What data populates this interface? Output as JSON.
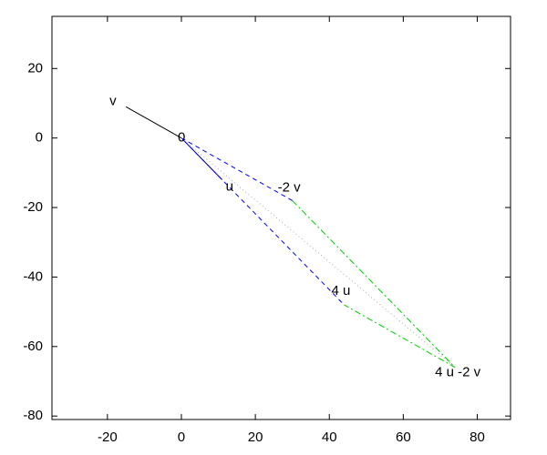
{
  "chart_data": {
    "type": "vector",
    "xlim": [
      -35,
      89
    ],
    "ylim": [
      -81,
      35
    ],
    "xticks": [
      -20,
      0,
      20,
      40,
      60,
      80
    ],
    "yticks": [
      -80,
      -60,
      -40,
      -20,
      0,
      20
    ],
    "grid": false,
    "series": [
      {
        "color": "#000000",
        "dash": "solid",
        "x": [
          0,
          -15
        ],
        "y": [
          0,
          9
        ]
      },
      {
        "color": "#000080",
        "dash": "solid",
        "x": [
          0,
          11
        ],
        "y": [
          0,
          -12
        ]
      },
      {
        "color": "#0000ff",
        "dash": "dashed",
        "x": [
          30,
          0,
          44
        ],
        "y": [
          -18,
          0,
          -48
        ]
      },
      {
        "color": "#00cc00",
        "dash": "dashdot",
        "x": [
          30,
          74,
          44
        ],
        "y": [
          -18,
          -66,
          -48
        ]
      },
      {
        "color": "#aaaaaa",
        "dash": "dotted",
        "x": [
          0,
          74
        ],
        "y": [
          0,
          -66
        ]
      }
    ],
    "points": [
      {
        "label": "v",
        "x": -15,
        "y": 9
      },
      {
        "label": "0",
        "x": 0,
        "y": 0
      },
      {
        "label": "u",
        "x": 11,
        "y": -12
      },
      {
        "label": "-2 v",
        "x": 30,
        "y": -18
      },
      {
        "label": "4 u",
        "x": 44,
        "y": -48
      },
      {
        "label": "4 u -2 v",
        "x": 74,
        "y": -66
      }
    ]
  }
}
